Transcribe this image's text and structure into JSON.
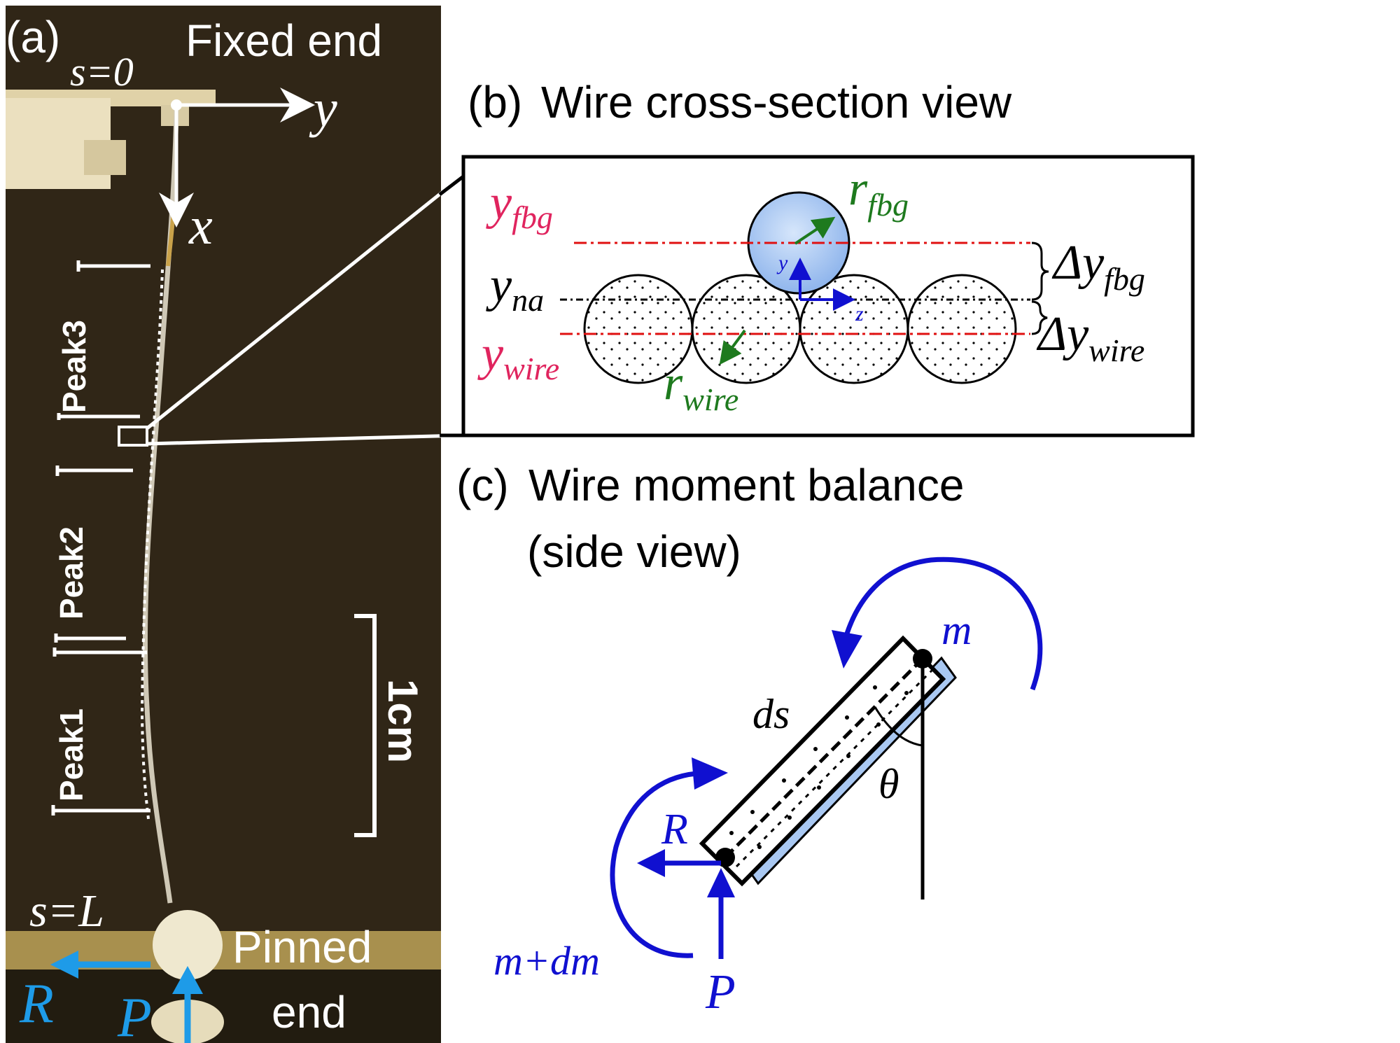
{
  "panel_a": {
    "label": "(a)",
    "fixed_end": "Fixed end",
    "s0": "s=0",
    "axis_y": "y",
    "axis_x": "x",
    "peaks": [
      "Peak3",
      "Peak2",
      "Peak1"
    ],
    "scale_bar": "1cm",
    "sL": "s=L",
    "pinned_end_1": "Pinned",
    "pinned_end_2": "end",
    "force_R": "R",
    "force_P": "P"
  },
  "panel_b": {
    "label": "(b)",
    "title": "Wire cross-section view",
    "y_fbg": "y",
    "y_fbg_sub": "fbg",
    "y_na": "y",
    "y_na_sub": "na",
    "y_wire": "y",
    "y_wire_sub": "wire",
    "r_fbg": "r",
    "r_fbg_sub": "fbg",
    "r_wire": "r",
    "r_wire_sub": "wire",
    "dy_fbg": "Δy",
    "dy_fbg_sub": "fbg",
    "dy_wire": "Δy",
    "dy_wire_sub": "wire",
    "local_y": "y",
    "local_z": "z"
  },
  "panel_c": {
    "label": "(c)",
    "title_1": "Wire moment balance",
    "title_2": "(side view)",
    "m": "m",
    "ds": "ds",
    "theta": "θ",
    "R": "R",
    "P": "P",
    "m_dm": "m+dm"
  },
  "colors": {
    "photo_bg": "#2a2214",
    "red_label": "#e0245e",
    "green": "#1e7a1e",
    "blue": "#1010d0",
    "cyan_arrow": "#1e9be8",
    "fbg_fill": "#a9c8f2"
  }
}
